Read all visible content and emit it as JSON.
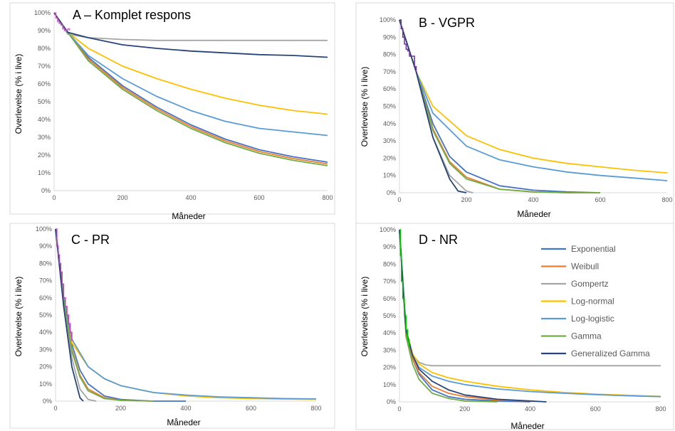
{
  "legend": {
    "entries": [
      {
        "name": "Exponential",
        "color": "#4472c4"
      },
      {
        "name": "Weibull",
        "color": "#ed7d31"
      },
      {
        "name": "Gompertz",
        "color": "#a5a5a5"
      },
      {
        "name": "Log-normal",
        "color": "#ffc000"
      },
      {
        "name": "Log-logistic",
        "color": "#5b9bd5"
      },
      {
        "name": "Gamma",
        "color": "#70ad47"
      },
      {
        "name": "Generalized Gamma",
        "color": "#264478"
      }
    ]
  },
  "chart_data": [
    {
      "type": "line",
      "title": "A – Komplet respons",
      "xlabel": "Måneder",
      "ylabel": "Overlevelse (% i live)",
      "xlim": [
        0,
        800
      ],
      "ylim": [
        0,
        100
      ],
      "x_ticks": [
        "0",
        "200",
        "400",
        "600",
        "800"
      ],
      "y_ticks": [
        "0%",
        "10%",
        "20%",
        "30%",
        "40%",
        "50%",
        "60%",
        "70%",
        "80%",
        "90%",
        "100%"
      ],
      "grid": false,
      "kaplan_meier": {
        "color": "#cc66cc",
        "x": [
          0,
          5,
          10,
          15,
          20,
          25,
          30,
          35,
          40,
          45
        ],
        "y": [
          100,
          97,
          95,
          94,
          93,
          91,
          90,
          90,
          91,
          90
        ]
      },
      "series": [
        {
          "name": "Exponential",
          "x": [
            0,
            40,
            100,
            200,
            300,
            400,
            500,
            600,
            700,
            800
          ],
          "y": [
            100,
            89,
            75,
            59,
            47,
            37,
            29,
            23,
            19,
            16
          ]
        },
        {
          "name": "Weibull",
          "x": [
            0,
            40,
            100,
            200,
            300,
            400,
            500,
            600,
            700,
            800
          ],
          "y": [
            100,
            89,
            74,
            58,
            46,
            36,
            28,
            22,
            18,
            15
          ]
        },
        {
          "name": "Gompertz",
          "x": [
            0,
            40,
            100,
            200,
            300,
            400,
            500,
            600,
            700,
            800
          ],
          "y": [
            100,
            88,
            86,
            85,
            84.5,
            84.5,
            84.5,
            84.5,
            84.5,
            84.5
          ]
        },
        {
          "name": "Log-normal",
          "x": [
            0,
            40,
            100,
            200,
            300,
            400,
            500,
            600,
            700,
            800
          ],
          "y": [
            100,
            89,
            80,
            70,
            63,
            57,
            52,
            48,
            45,
            43
          ]
        },
        {
          "name": "Log-logistic",
          "x": [
            0,
            40,
            100,
            200,
            300,
            400,
            500,
            600,
            700,
            800
          ],
          "y": [
            100,
            89,
            76,
            63,
            53,
            45,
            39,
            35,
            33,
            31
          ]
        },
        {
          "name": "Gamma",
          "x": [
            0,
            40,
            100,
            200,
            300,
            400,
            500,
            600,
            700,
            800
          ],
          "y": [
            100,
            89,
            73,
            57,
            45,
            35,
            27,
            21,
            17,
            14
          ]
        },
        {
          "name": "Generalized Gamma",
          "x": [
            0,
            40,
            100,
            200,
            300,
            400,
            500,
            600,
            700,
            800
          ],
          "y": [
            100,
            89,
            86,
            82,
            80,
            78.5,
            77.5,
            76.5,
            76,
            75
          ]
        }
      ]
    },
    {
      "type": "line",
      "title": "B - VGPR",
      "xlabel": "Måneder",
      "ylabel": "Overlevelse (% i live)",
      "xlim": [
        0,
        800
      ],
      "ylim": [
        0,
        100
      ],
      "x_ticks": [
        "0",
        "200",
        "400",
        "600",
        "800"
      ],
      "y_ticks": [
        "0%",
        "10%",
        "20%",
        "30%",
        "40%",
        "50%",
        "60%",
        "70%",
        "80%",
        "90%",
        "100%"
      ],
      "grid": false,
      "kaplan_meier": {
        "color": "#7030a0",
        "x": [
          0,
          5,
          10,
          15,
          20,
          25,
          30,
          35,
          40,
          45,
          50
        ],
        "y": [
          100,
          95,
          90,
          86,
          83,
          82,
          79,
          79,
          79,
          73,
          70
        ]
      },
      "series": [
        {
          "name": "Exponential",
          "x": [
            0,
            50,
            100,
            150,
            200,
            300,
            400,
            500,
            600
          ],
          "y": [
            100,
            70,
            40,
            21,
            12,
            4,
            1.5,
            0.5,
            0
          ]
        },
        {
          "name": "Weibull",
          "x": [
            0,
            50,
            100,
            150,
            200,
            300,
            400,
            500,
            600
          ],
          "y": [
            100,
            70,
            37,
            18,
            9,
            2,
            0.5,
            0,
            0
          ]
        },
        {
          "name": "Gompertz",
          "x": [
            0,
            50,
            100,
            150,
            200,
            220
          ],
          "y": [
            100,
            70,
            32,
            10,
            1,
            0
          ]
        },
        {
          "name": "Log-normal",
          "x": [
            0,
            50,
            100,
            200,
            300,
            400,
            500,
            600,
            700,
            800
          ],
          "y": [
            100,
            70,
            50,
            33,
            25,
            20,
            17,
            15,
            13,
            11.5
          ]
        },
        {
          "name": "Log-logistic",
          "x": [
            0,
            50,
            100,
            200,
            300,
            400,
            500,
            600,
            700,
            800
          ],
          "y": [
            100,
            70,
            46,
            27,
            19,
            15,
            12,
            10,
            8.5,
            7
          ]
        },
        {
          "name": "Gamma",
          "x": [
            0,
            50,
            100,
            150,
            200,
            300,
            400,
            500,
            600
          ],
          "y": [
            100,
            70,
            36,
            17,
            8,
            2,
            0.5,
            0,
            0
          ]
        },
        {
          "name": "Generalized Gamma",
          "x": [
            0,
            50,
            100,
            150,
            175,
            200
          ],
          "y": [
            100,
            70,
            32,
            8,
            1,
            0
          ]
        }
      ]
    },
    {
      "type": "line",
      "title": "C - PR",
      "xlabel": "Måneder",
      "ylabel": "Overlevelse (% i live)",
      "xlim": [
        0,
        800
      ],
      "ylim": [
        0,
        100
      ],
      "x_ticks": [
        "0",
        "200",
        "400",
        "600",
        "800"
      ],
      "y_ticks": [
        "0%",
        "10%",
        "20%",
        "30%",
        "40%",
        "50%",
        "60%",
        "70%",
        "80%",
        "90%",
        "100%"
      ],
      "grid": false,
      "kaplan_meier": {
        "color": "#cc33cc",
        "x": [
          0,
          4,
          8,
          12,
          16,
          20,
          25,
          30,
          35,
          40,
          45,
          50
        ],
        "y": [
          100,
          90,
          85,
          80,
          75,
          68,
          60,
          55,
          50,
          45,
          40,
          35
        ]
      },
      "series": [
        {
          "name": "Exponential",
          "x": [
            0,
            25,
            50,
            75,
            100,
            150,
            200,
            300,
            400
          ],
          "y": [
            100,
            60,
            33,
            18,
            10,
            3,
            1,
            0,
            0
          ]
        },
        {
          "name": "Weibull",
          "x": [
            0,
            25,
            50,
            75,
            100,
            150,
            200,
            300
          ],
          "y": [
            100,
            60,
            30,
            15,
            7,
            2,
            0.5,
            0
          ]
        },
        {
          "name": "Gompertz",
          "x": [
            0,
            25,
            50,
            75,
            100,
            125
          ],
          "y": [
            100,
            58,
            25,
            7,
            1,
            0
          ]
        },
        {
          "name": "Log-normal",
          "x": [
            0,
            25,
            50,
            100,
            150,
            200,
            300,
            400,
            500,
            600,
            700,
            800
          ],
          "y": [
            100,
            60,
            34,
            20,
            13,
            9,
            5,
            3,
            2,
            1.5,
            1.2,
            1
          ]
        },
        {
          "name": "Log-logistic",
          "x": [
            0,
            25,
            50,
            100,
            150,
            200,
            300,
            400,
            500,
            600,
            700,
            800
          ],
          "y": [
            100,
            60,
            36,
            20,
            13,
            9,
            5,
            3.5,
            2.5,
            2,
            1.5,
            1.3
          ]
        },
        {
          "name": "Gamma",
          "x": [
            0,
            25,
            50,
            75,
            100,
            150,
            200,
            300
          ],
          "y": [
            100,
            60,
            29,
            14,
            6,
            1.5,
            0.5,
            0
          ]
        },
        {
          "name": "Generalized Gamma",
          "x": [
            0,
            25,
            50,
            75,
            85
          ],
          "y": [
            100,
            55,
            20,
            2,
            0
          ]
        }
      ]
    },
    {
      "type": "line",
      "title": "D - NR",
      "xlabel": "Måneder",
      "ylabel": "Overlevelse (% i live)",
      "xlim": [
        0,
        800
      ],
      "ylim": [
        0,
        100
      ],
      "x_ticks": [
        "0",
        "200",
        "400",
        "600",
        "800"
      ],
      "y_ticks": [
        "0%",
        "10%",
        "20%",
        "30%",
        "40%",
        "50%",
        "60%",
        "70%",
        "80%",
        "90%",
        "100%"
      ],
      "grid": false,
      "legend_position": "top-right",
      "kaplan_meier": {
        "color": "#00cc00",
        "x": [
          0,
          3,
          6,
          10,
          15,
          20,
          25,
          30
        ],
        "y": [
          100,
          85,
          70,
          60,
          50,
          42,
          36,
          32
        ]
      },
      "series": [
        {
          "name": "Exponential",
          "x": [
            0,
            20,
            40,
            60,
            100,
            150,
            200,
            300,
            400
          ],
          "y": [
            100,
            40,
            25,
            16,
            7,
            3,
            1.5,
            0.5,
            0
          ]
        },
        {
          "name": "Weibull",
          "x": [
            0,
            20,
            40,
            60,
            100,
            150,
            200,
            300,
            400
          ],
          "y": [
            100,
            40,
            25,
            17,
            9,
            5,
            3,
            1,
            0.5
          ]
        },
        {
          "name": "Gompertz",
          "x": [
            0,
            20,
            40,
            60,
            80,
            100,
            200,
            400,
            600,
            800
          ],
          "y": [
            100,
            40,
            27,
            23,
            21.5,
            21,
            21,
            21,
            21,
            21
          ]
        },
        {
          "name": "Log-normal",
          "x": [
            0,
            20,
            40,
            60,
            100,
            150,
            200,
            300,
            400,
            500,
            600,
            700,
            800
          ],
          "y": [
            100,
            42,
            28,
            22,
            17,
            14,
            12,
            9,
            7,
            5.5,
            4.5,
            3.8,
            3.2
          ]
        },
        {
          "name": "Log-logistic",
          "x": [
            0,
            20,
            40,
            60,
            100,
            150,
            200,
            300,
            400,
            500,
            600,
            700,
            800
          ],
          "y": [
            100,
            40,
            27,
            20,
            15,
            12,
            10,
            7.5,
            6,
            5,
            4.2,
            3.5,
            3
          ]
        },
        {
          "name": "Gamma",
          "x": [
            0,
            20,
            40,
            60,
            100,
            150,
            200,
            300
          ],
          "y": [
            100,
            38,
            22,
            13,
            5,
            2,
            0.5,
            0
          ]
        },
        {
          "name": "Generalized Gamma",
          "x": [
            0,
            20,
            40,
            60,
            100,
            150,
            200,
            300,
            400,
            450
          ],
          "y": [
            100,
            42,
            27,
            19,
            12,
            7,
            4,
            1.5,
            0.5,
            0
          ]
        }
      ]
    }
  ]
}
